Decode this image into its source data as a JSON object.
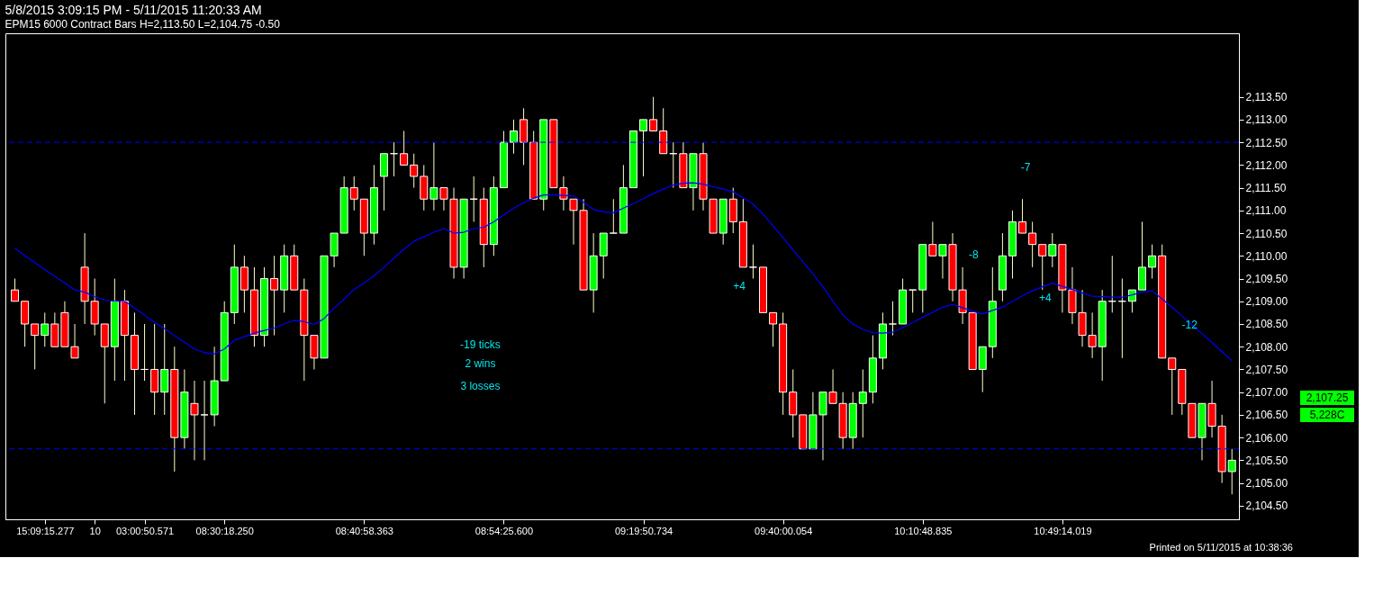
{
  "chart_data": {
    "type": "candlestick",
    "title": "5/8/2015 3:09:15 PM - 5/11/2015 11:20:33 AM",
    "subtitle": "EPM15  6000 Contract Bars  H=2,113.50  L=2,104.75  -0.50",
    "categories": [
      null,
      null,
      null,
      "15:09:15.277",
      null,
      null,
      null,
      null,
      "10",
      null,
      null,
      null,
      null,
      "03:00:50.571",
      null,
      null,
      null,
      null,
      null,
      null,
      null,
      "08:30:18.250",
      null,
      null,
      null,
      null,
      null,
      null,
      null,
      null,
      null,
      null,
      null,
      null,
      null,
      "08:40:58.363",
      null,
      null,
      null,
      null,
      null,
      null,
      null,
      null,
      null,
      null,
      null,
      null,
      null,
      "08:54:25.600",
      null,
      null,
      null,
      null,
      null,
      null,
      null,
      null,
      null,
      null,
      null,
      null,
      null,
      "09:19:50.734",
      null,
      null,
      null,
      null,
      null,
      null,
      null,
      null,
      null,
      null,
      null,
      null,
      null,
      "09:40:00.054",
      null,
      null,
      null,
      null,
      null,
      null,
      null,
      null,
      null,
      null,
      null,
      null,
      null,
      "10:10:48.835",
      null,
      null,
      null,
      null,
      null,
      null,
      null,
      null,
      null,
      null,
      null,
      null,
      null,
      "10:49:14.019",
      null,
      null,
      null,
      null,
      null,
      null,
      null,
      null,
      null,
      null,
      null,
      null,
      null,
      null,
      null,
      null,
      null
    ],
    "ohlc": [
      [
        2109.25,
        2109.5,
        2109,
        2109
      ],
      [
        2109,
        2109,
        2108,
        2108.5
      ],
      [
        2108.5,
        2108.5,
        2107.5,
        2108.25
      ],
      [
        2108.25,
        2108.75,
        2108,
        2108.5
      ],
      [
        2108.5,
        2108.75,
        2108,
        2108
      ],
      [
        2108.75,
        2109,
        2108,
        2108
      ],
      [
        2108,
        2108.5,
        2107.75,
        2107.75
      ],
      [
        2109.75,
        2110.5,
        2108.5,
        2109
      ],
      [
        2109,
        2109.5,
        2108.25,
        2108.5
      ],
      [
        2108.5,
        2108.5,
        2106.75,
        2108
      ],
      [
        2108,
        2109.5,
        2107.25,
        2109
      ],
      [
        2109,
        2109.25,
        2107.25,
        2108.25
      ],
      [
        2108.25,
        2108.75,
        2106.5,
        2107.5
      ],
      [
        2107.5,
        2108.5,
        2107.25,
        2107.5
      ],
      [
        2107.5,
        2108.5,
        2106.5,
        2107
      ],
      [
        2107,
        2108.5,
        2106.5,
        2107.5
      ],
      [
        2107.5,
        2108,
        2105.25,
        2106
      ],
      [
        2106,
        2107.5,
        2105.75,
        2107
      ],
      [
        2106.75,
        2107.25,
        2105.5,
        2106.5
      ],
      [
        2106.5,
        2107.25,
        2105.5,
        2106.5
      ],
      [
        2106.5,
        2108,
        2106.25,
        2107.25
      ],
      [
        2107.25,
        2109,
        2107.25,
        2108.75
      ],
      [
        2108.75,
        2110.25,
        2108.5,
        2109.75
      ],
      [
        2109.75,
        2110,
        2108.75,
        2109.25
      ],
      [
        2109.25,
        2109.75,
        2108,
        2108.25
      ],
      [
        2108.25,
        2109.75,
        2108,
        2109.5
      ],
      [
        2109.5,
        2110,
        2108.25,
        2109.25
      ],
      [
        2109.25,
        2110.25,
        2108.75,
        2110
      ],
      [
        2110,
        2110.25,
        2109.25,
        2109.25
      ],
      [
        2109.25,
        2109.5,
        2107.25,
        2108.25
      ],
      [
        2108.25,
        2108.25,
        2107.5,
        2107.75
      ],
      [
        2107.75,
        2110,
        2107.75,
        2110
      ],
      [
        2110,
        2110.5,
        2109.75,
        2110.5
      ],
      [
        2110.5,
        2111.75,
        2110.5,
        2111.5
      ],
      [
        2111.5,
        2111.75,
        2111,
        2111.25
      ],
      [
        2111.25,
        2111.25,
        2110,
        2110.5
      ],
      [
        2110.5,
        2112,
        2110.25,
        2111.5
      ],
      [
        2111.75,
        2112.25,
        2111,
        2112.25
      ],
      [
        2112.25,
        2112.5,
        2111.75,
        2112.25
      ],
      [
        2112.25,
        2112.75,
        2112,
        2112
      ],
      [
        2112,
        2112.25,
        2111.5,
        2111.75
      ],
      [
        2111.75,
        2112,
        2111,
        2111.25
      ],
      [
        2111.25,
        2112.5,
        2111,
        2111.5
      ],
      [
        2111.5,
        2111.5,
        2111,
        2111.25
      ],
      [
        2111.25,
        2111.5,
        2109.5,
        2109.75
      ],
      [
        2109.75,
        2111.25,
        2109.5,
        2111.25
      ],
      [
        2111.25,
        2111.75,
        2110.75,
        2111.25
      ],
      [
        2111.25,
        2111.5,
        2109.75,
        2110.25
      ],
      [
        2110.25,
        2111.75,
        2110,
        2111.5
      ],
      [
        2111.5,
        2112.75,
        2111.5,
        2112.5
      ],
      [
        2112.5,
        2113,
        2112.25,
        2112.75
      ],
      [
        2113,
        2113.25,
        2112,
        2112.5
      ],
      [
        2112.5,
        2112.75,
        2111.25,
        2111.25
      ],
      [
        2111.25,
        2113,
        2111,
        2113
      ],
      [
        2113,
        2113,
        2111.5,
        2111.5
      ],
      [
        2111.5,
        2111.75,
        2111,
        2111.25
      ],
      [
        2111.25,
        2111.25,
        2110.25,
        2111
      ],
      [
        2111,
        2111.25,
        2109.25,
        2109.25
      ],
      [
        2109.25,
        2110.5,
        2108.75,
        2110
      ],
      [
        2110,
        2110.5,
        2109.5,
        2110.5
      ],
      [
        2110.5,
        2111.25,
        2110.5,
        2110.5
      ],
      [
        2110.5,
        2112,
        2110.5,
        2111.5
      ],
      [
        2111.5,
        2112.75,
        2111.5,
        2112.75
      ],
      [
        2112.75,
        2113,
        2111.75,
        2113
      ],
      [
        2113,
        2113.5,
        2112.75,
        2112.75
      ],
      [
        2112.75,
        2113.25,
        2112.25,
        2112.25
      ],
      [
        2112.25,
        2112.5,
        2111.5,
        2112.25
      ],
      [
        2112.25,
        2112.5,
        2111.5,
        2111.5
      ],
      [
        2111.5,
        2112.25,
        2111,
        2112.25
      ],
      [
        2112.25,
        2112.5,
        2111,
        2111.25
      ],
      [
        2111.25,
        2111.25,
        2110.5,
        2110.5
      ],
      [
        2110.5,
        2111.25,
        2110.25,
        2111.25
      ],
      [
        2111.25,
        2111.5,
        2110.5,
        2110.75
      ],
      [
        2110.75,
        2111.25,
        2109.75,
        2109.75
      ],
      [
        2109.75,
        2110.25,
        2109.5,
        2109.75
      ],
      [
        2109.75,
        2109.75,
        2108.75,
        2108.75
      ],
      [
        2108.75,
        2108.75,
        2108,
        2108.5
      ],
      [
        2108.5,
        2108.75,
        2106.5,
        2107
      ],
      [
        2107,
        2107.5,
        2106,
        2106.5
      ],
      [
        2106.5,
        2106.5,
        2105.75,
        2105.75
      ],
      [
        2105.75,
        2107,
        2105.75,
        2106.5
      ],
      [
        2106.5,
        2107,
        2105.5,
        2107
      ],
      [
        2107,
        2107.5,
        2106.75,
        2106.75
      ],
      [
        2106.75,
        2107,
        2105.75,
        2106
      ],
      [
        2106,
        2107,
        2105.75,
        2106.75
      ],
      [
        2106.75,
        2107.5,
        2106,
        2107
      ],
      [
        2107,
        2108.25,
        2106.75,
        2107.75
      ],
      [
        2107.75,
        2108.75,
        2107.5,
        2108.5
      ],
      [
        2108.5,
        2109,
        2108.25,
        2108.5
      ],
      [
        2108.5,
        2109.5,
        2108.5,
        2109.25
      ],
      [
        2109.25,
        2109.25,
        2108.75,
        2109.25
      ],
      [
        2109.25,
        2110.25,
        2108.75,
        2110.25
      ],
      [
        2110.25,
        2110.75,
        2110,
        2110
      ],
      [
        2110,
        2110.25,
        2109.5,
        2110.25
      ],
      [
        2110.25,
        2110.5,
        2109,
        2109.25
      ],
      [
        2109.25,
        2109.75,
        2108.5,
        2108.75
      ],
      [
        2108.75,
        2108.75,
        2107.5,
        2107.5
      ],
      [
        2107.5,
        2108,
        2107,
        2108
      ],
      [
        2108,
        2109.75,
        2107.75,
        2109
      ],
      [
        2109.25,
        2110.5,
        2109,
        2110
      ],
      [
        2110,
        2111,
        2109.5,
        2110.75
      ],
      [
        2110.75,
        2111.25,
        2110.5,
        2110.5
      ],
      [
        2110.5,
        2110.75,
        2109.75,
        2110.25
      ],
      [
        2110.25,
        2110.25,
        2109.25,
        2110
      ],
      [
        2110,
        2110.5,
        2109.75,
        2110.25
      ],
      [
        2110.25,
        2110.25,
        2108.75,
        2109.25
      ],
      [
        2109.25,
        2109.75,
        2108.5,
        2108.75
      ],
      [
        2108.75,
        2109.25,
        2108,
        2108.25
      ],
      [
        2108.25,
        2108.75,
        2107.75,
        2108
      ],
      [
        2108,
        2109.25,
        2107.25,
        2109
      ],
      [
        2109,
        2110,
        2108.75,
        2109
      ],
      [
        2109,
        2109.5,
        2107.75,
        2109
      ],
      [
        2109,
        2109.25,
        2108.75,
        2109.25
      ],
      [
        2109.25,
        2110.75,
        2109.25,
        2109.75
      ],
      [
        2109.75,
        2110.25,
        2109.5,
        2110
      ],
      [
        2110,
        2110.25,
        2107.75,
        2107.75
      ],
      [
        2107.75,
        2107.75,
        2106.5,
        2107.5
      ],
      [
        2107.5,
        2107.5,
        2106.5,
        2106.75
      ],
      [
        2106.75,
        2106.75,
        2106,
        2106
      ],
      [
        2106,
        2106.75,
        2105.5,
        2106.75
      ],
      [
        2106.75,
        2107.25,
        2106,
        2106.25
      ],
      [
        2106.25,
        2106.5,
        2105,
        2105.25
      ],
      [
        2105.25,
        2105.75,
        2104.75,
        2105.5
      ]
    ],
    "colors": [
      "#ff0000",
      "#ff0000",
      "#ff0000",
      "#00ff00",
      "#ff0000",
      "#ff0000",
      "#ff0000",
      "#ff0000",
      "#ff0000",
      "#ff0000",
      "#00ff00",
      "#ff0000",
      "#ff0000",
      "#ffffff",
      "#ff0000",
      "#00ff00",
      "#ff0000",
      "#00ff00",
      "#ff0000",
      "#ffffff",
      "#00ff00",
      "#00ff00",
      "#00ff00",
      "#ff0000",
      "#ff0000",
      "#00ff00",
      "#ff0000",
      "#00ff00",
      "#ff0000",
      "#ff0000",
      "#ff0000",
      "#00ff00",
      "#00ff00",
      "#00ff00",
      "#ff0000",
      "#ff0000",
      "#00ff00",
      "#00ff00",
      "#ffffff",
      "#ff0000",
      "#ff0000",
      "#ff0000",
      "#00ff00",
      "#ff0000",
      "#ff0000",
      "#00ff00",
      "#ffffff",
      "#ff0000",
      "#00ff00",
      "#00ff00",
      "#00ff00",
      "#ff0000",
      "#ff0000",
      "#00ff00",
      "#ff0000",
      "#ff0000",
      "#ff0000",
      "#ff0000",
      "#00ff00",
      "#00ff00",
      "#ffffff",
      "#00ff00",
      "#00ff00",
      "#00ff00",
      "#ff0000",
      "#ff0000",
      "#ffffff",
      "#ff0000",
      "#00ff00",
      "#ff0000",
      "#ff0000",
      "#00ff00",
      "#ff0000",
      "#ff0000",
      "#ffffff",
      "#ff0000",
      "#ff0000",
      "#ff0000",
      "#ff0000",
      "#ff0000",
      "#00ff00",
      "#00ff00",
      "#ff0000",
      "#ff0000",
      "#00ff00",
      "#00ff00",
      "#00ff00",
      "#00ff00",
      "#ffffff",
      "#00ff00",
      "#ffffff",
      "#00ff00",
      "#ff0000",
      "#00ff00",
      "#ff0000",
      "#ff0000",
      "#ff0000",
      "#00ff00",
      "#00ff00",
      "#00ff00",
      "#00ff00",
      "#ff0000",
      "#ff0000",
      "#ff0000",
      "#00ff00",
      "#ff0000",
      "#ff0000",
      "#ff0000",
      "#ff0000",
      "#00ff00",
      "#ffffff",
      "#ffffff",
      "#00ff00",
      "#00ff00",
      "#00ff00",
      "#ff0000",
      "#ff0000",
      "#ff0000",
      "#ff0000",
      "#00ff00",
      "#ff0000",
      "#ff0000",
      "#00ff00"
    ],
    "series": [
      {
        "type": "line",
        "color": "#0000ff",
        "line_style": "solid",
        "values": [
          2110.17,
          2110.0,
          2109.85,
          2109.7,
          2109.55,
          2109.4,
          2109.25,
          2109.2,
          2109.1,
          2109.03,
          2109.0,
          2109.0,
          2108.85,
          2108.7,
          2108.53,
          2108.4,
          2108.24,
          2108.1,
          2107.95,
          2107.87,
          2107.84,
          2107.95,
          2108.14,
          2108.22,
          2108.3,
          2108.36,
          2108.41,
          2108.5,
          2108.58,
          2108.55,
          2108.49,
          2108.62,
          2108.85,
          2109.05,
          2109.26,
          2109.4,
          2109.56,
          2109.75,
          2109.95,
          2110.15,
          2110.32,
          2110.42,
          2110.52,
          2110.6,
          2110.5,
          2110.52,
          2110.6,
          2110.63,
          2110.75,
          2110.9,
          2111.05,
          2111.17,
          2111.27,
          2111.34,
          2111.34,
          2111.33,
          2111.32,
          2111.18,
          2111.02,
          2110.97,
          2110.95,
          2111.05,
          2111.15,
          2111.26,
          2111.37,
          2111.47,
          2111.56,
          2111.6,
          2111.61,
          2111.58,
          2111.52,
          2111.47,
          2111.41,
          2111.28,
          2111.14,
          2110.92,
          2110.66,
          2110.4,
          2110.13,
          2109.87,
          2109.6,
          2109.32,
          2109.0,
          2108.7,
          2108.5,
          2108.38,
          2108.31,
          2108.3,
          2108.32,
          2108.42,
          2108.53,
          2108.65,
          2108.76,
          2108.87,
          2108.93,
          2108.86,
          2108.78,
          2108.72,
          2108.8,
          2108.87,
          2109.0,
          2109.12,
          2109.23,
          2109.32,
          2109.4,
          2109.33,
          2109.26,
          2109.18,
          2109.11,
          2109.1,
          2109.09,
          2109.09,
          2109.14,
          2109.2,
          2109.23,
          2109.05,
          2108.87,
          2108.67,
          2108.48,
          2108.29,
          2108.09,
          2107.89,
          2107.69
        ]
      }
    ],
    "ref_lines": [
      {
        "axis": "y",
        "value": 2112.5,
        "color": "#0000ff",
        "line_style": "dashed"
      },
      {
        "axis": "y",
        "value": 2105.75,
        "color": "#0000ff",
        "line_style": "dashed"
      }
    ],
    "ylim": [
      2104.2,
      2114.9
    ],
    "yticks": [
      {
        "value": 2104.5,
        "label": "2,104.50"
      },
      {
        "value": 2105,
        "label": "2,105.00"
      },
      {
        "value": 2105.5,
        "label": "2,105.50"
      },
      {
        "value": 2106,
        "label": "2,106.00"
      },
      {
        "value": 2106.5,
        "label": "2,106.50"
      },
      {
        "value": 2107,
        "label": "2,107.00"
      },
      {
        "value": 2107.5,
        "label": "2,107.50"
      },
      {
        "value": 2108,
        "label": "2,108.00"
      },
      {
        "value": 2108.5,
        "label": "2,108.50"
      },
      {
        "value": 2109,
        "label": "2,109.00"
      },
      {
        "value": 2109.5,
        "label": "2,109.50"
      },
      {
        "value": 2110,
        "label": "2,110.00"
      },
      {
        "value": 2110.5,
        "label": "2,110.50"
      },
      {
        "value": 2111,
        "label": "2,111.00"
      },
      {
        "value": 2111.5,
        "label": "2,111.50"
      },
      {
        "value": 2112,
        "label": "2,112.00"
      },
      {
        "value": 2112.5,
        "label": "2,112.50"
      },
      {
        "value": 2113,
        "label": "2,113.00"
      },
      {
        "value": 2113.5,
        "label": "2,113.50"
      }
    ],
    "annotations": [
      "-19 ticks",
      "2 wins",
      "3 losses",
      "+4",
      "-8",
      "-7",
      "+4",
      "-12",
      "2,107.25",
      "5,228C",
      "Printed on 5/11/2015 at 10:38:36"
    ],
    "grid": false
  }
}
